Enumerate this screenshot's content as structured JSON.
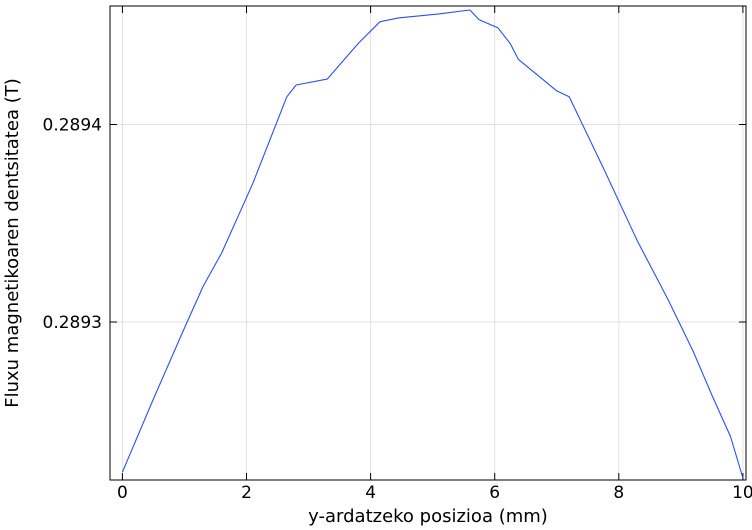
{
  "chart_data": {
    "type": "line",
    "title": "",
    "xlabel": "y-ardatzeko posizioa (mm)",
    "ylabel": "Fluxu magnetikoaren dentsitatea (T)",
    "xlim": [
      -0.2,
      10.05
    ],
    "ylim": [
      0.28922,
      0.28946
    ],
    "xticks": [
      0,
      2,
      4,
      6,
      8,
      10
    ],
    "xtick_labels": [
      "0",
      "2",
      "4",
      "6",
      "8",
      "10"
    ],
    "yticks": [
      0.2893,
      0.2894
    ],
    "ytick_labels": [
      "0.2893",
      "0.2894"
    ],
    "grid": true,
    "line_color": "#2b4ff0",
    "series": [
      {
        "x": [
          0,
          0.5,
          1.0,
          1.3,
          1.6,
          2.1,
          2.65,
          2.8,
          3.3,
          3.8,
          4.15,
          4.45,
          5.1,
          5.6,
          5.75,
          6.05,
          6.25,
          6.38,
          7.0,
          7.2,
          7.75,
          8.3,
          8.8,
          9.2,
          9.5,
          9.8,
          10.0
        ],
        "y": [
          0.289224,
          0.289261,
          0.289297,
          0.289318,
          0.289335,
          0.28937,
          0.289414,
          0.28942,
          0.289423,
          0.289441,
          0.289452,
          0.289454,
          0.289456,
          0.289458,
          0.289453,
          0.289449,
          0.289441,
          0.289433,
          0.289417,
          0.289414,
          0.289378,
          0.289341,
          0.289311,
          0.289285,
          0.289263,
          0.289242,
          0.289221
        ]
      }
    ]
  }
}
